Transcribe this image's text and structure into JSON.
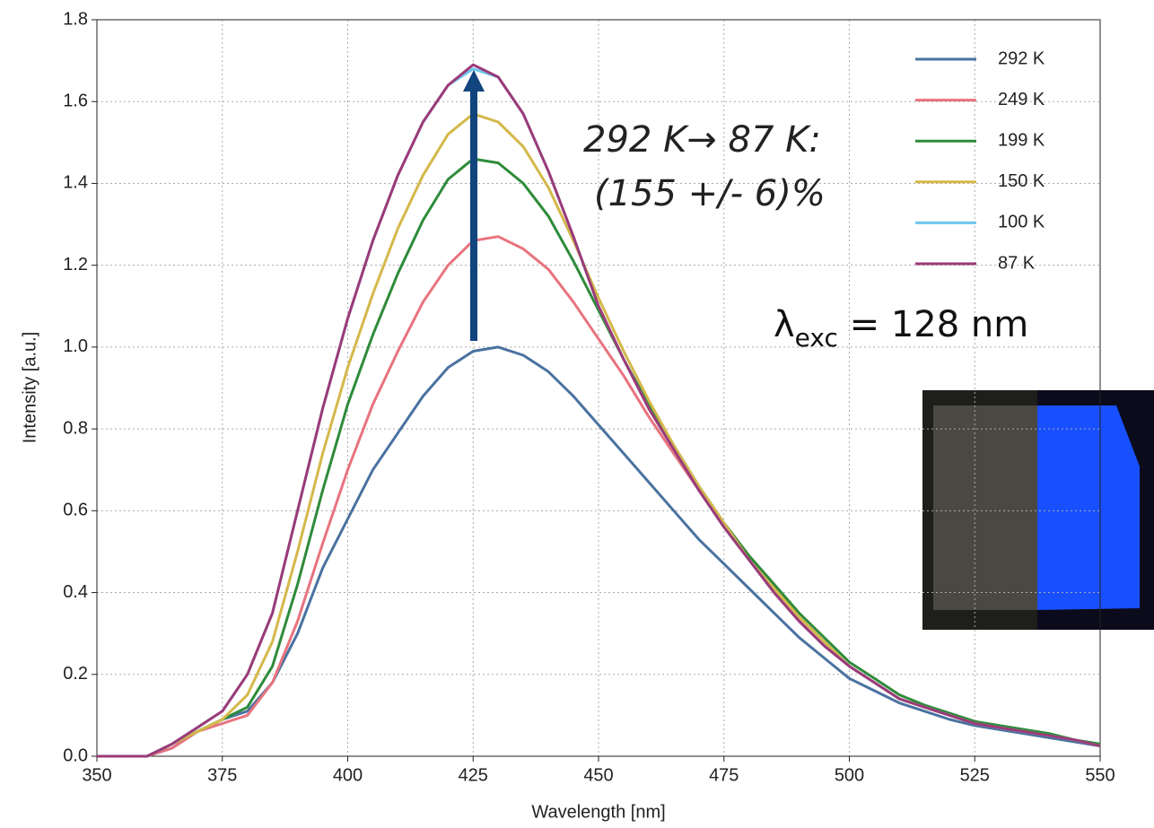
{
  "chart_data": {
    "type": "line",
    "x_label": "Wavelength [nm]",
    "y_label": "Intensity [a.u.]",
    "x": [
      350,
      355,
      360,
      365,
      370,
      375,
      380,
      385,
      390,
      395,
      400,
      405,
      410,
      415,
      420,
      425,
      430,
      435,
      440,
      445,
      450,
      455,
      460,
      465,
      470,
      475,
      480,
      485,
      490,
      495,
      500,
      505,
      510,
      515,
      520,
      525,
      530,
      535,
      540,
      545,
      550
    ],
    "series": [
      {
        "name": "292 K",
        "color": "#4a72a0",
        "values": [
          0,
          0,
          0,
          0.02,
          0.06,
          0.09,
          0.11,
          0.18,
          0.3,
          0.46,
          0.58,
          0.7,
          0.79,
          0.88,
          0.95,
          0.99,
          1.0,
          0.98,
          0.94,
          0.88,
          0.81,
          0.74,
          0.67,
          0.6,
          0.53,
          0.47,
          0.41,
          0.35,
          0.29,
          0.24,
          0.19,
          0.16,
          0.13,
          0.11,
          0.09,
          0.075,
          0.065,
          0.055,
          0.045,
          0.035,
          0.025
        ]
      },
      {
        "name": "249 K",
        "color": "#e8737e",
        "values": [
          0,
          0,
          0,
          0.02,
          0.06,
          0.08,
          0.1,
          0.18,
          0.33,
          0.52,
          0.7,
          0.86,
          0.99,
          1.11,
          1.2,
          1.26,
          1.27,
          1.24,
          1.19,
          1.11,
          1.02,
          0.93,
          0.83,
          0.74,
          0.65,
          0.57,
          0.49,
          0.42,
          0.34,
          0.28,
          0.22,
          0.18,
          0.14,
          0.12,
          0.1,
          0.08,
          0.07,
          0.06,
          0.05,
          0.04,
          0.025
        ]
      },
      {
        "name": "199 K",
        "color": "#2e8b3a",
        "values": [
          0,
          0,
          0,
          0.03,
          0.06,
          0.09,
          0.12,
          0.22,
          0.42,
          0.65,
          0.86,
          1.03,
          1.18,
          1.31,
          1.41,
          1.46,
          1.45,
          1.4,
          1.32,
          1.21,
          1.09,
          0.97,
          0.86,
          0.76,
          0.66,
          0.57,
          0.49,
          0.42,
          0.35,
          0.29,
          0.23,
          0.19,
          0.15,
          0.125,
          0.105,
          0.085,
          0.075,
          0.065,
          0.055,
          0.04,
          0.03
        ]
      },
      {
        "name": "150 K",
        "color": "#d4b84a",
        "values": [
          0,
          0,
          0,
          0.03,
          0.06,
          0.09,
          0.15,
          0.28,
          0.5,
          0.74,
          0.95,
          1.13,
          1.29,
          1.42,
          1.52,
          1.57,
          1.55,
          1.49,
          1.39,
          1.26,
          1.12,
          0.99,
          0.87,
          0.76,
          0.66,
          0.57,
          0.48,
          0.41,
          0.34,
          0.28,
          0.22,
          0.18,
          0.14,
          0.12,
          0.1,
          0.08,
          0.07,
          0.06,
          0.05,
          0.04,
          0.025
        ]
      },
      {
        "name": "100 K",
        "color": "#6ec6ec",
        "values": [
          0,
          0,
          0,
          0.03,
          0.07,
          0.11,
          0.2,
          0.35,
          0.6,
          0.85,
          1.07,
          1.26,
          1.42,
          1.55,
          1.64,
          1.68,
          1.66,
          1.57,
          1.43,
          1.27,
          1.1,
          0.97,
          0.85,
          0.75,
          0.65,
          0.56,
          0.48,
          0.4,
          0.33,
          0.27,
          0.22,
          0.18,
          0.14,
          0.12,
          0.1,
          0.08,
          0.07,
          0.06,
          0.05,
          0.04,
          0.025
        ]
      },
      {
        "name": "87 K",
        "color": "#9c3a78",
        "values": [
          0,
          0,
          0,
          0.03,
          0.07,
          0.11,
          0.2,
          0.35,
          0.6,
          0.85,
          1.07,
          1.26,
          1.42,
          1.55,
          1.64,
          1.69,
          1.66,
          1.57,
          1.43,
          1.27,
          1.1,
          0.97,
          0.85,
          0.75,
          0.65,
          0.56,
          0.48,
          0.4,
          0.33,
          0.27,
          0.22,
          0.18,
          0.14,
          0.12,
          0.1,
          0.08,
          0.07,
          0.06,
          0.05,
          0.04,
          0.025
        ]
      }
    ],
    "xlim": [
      350,
      550
    ],
    "xticks": [
      350,
      375,
      400,
      425,
      450,
      475,
      500,
      525,
      550
    ],
    "ylim": [
      0,
      1.8
    ],
    "yticks": [
      {
        "value": 0,
        "label": "0.0"
      },
      0.2,
      0.4,
      0.6,
      0.8,
      {
        "value": 1,
        "label": "1.0"
      },
      1.2,
      1.4,
      1.6,
      1.8
    ],
    "grid": true,
    "legend": "upper right",
    "annotations": {
      "change": "292 K→ 87 K:",
      "percent": "(155 +/- 6)%",
      "lambda": "λ",
      "lambda_sub": "exc",
      "lambda_rest": " = 128 nm"
    }
  }
}
